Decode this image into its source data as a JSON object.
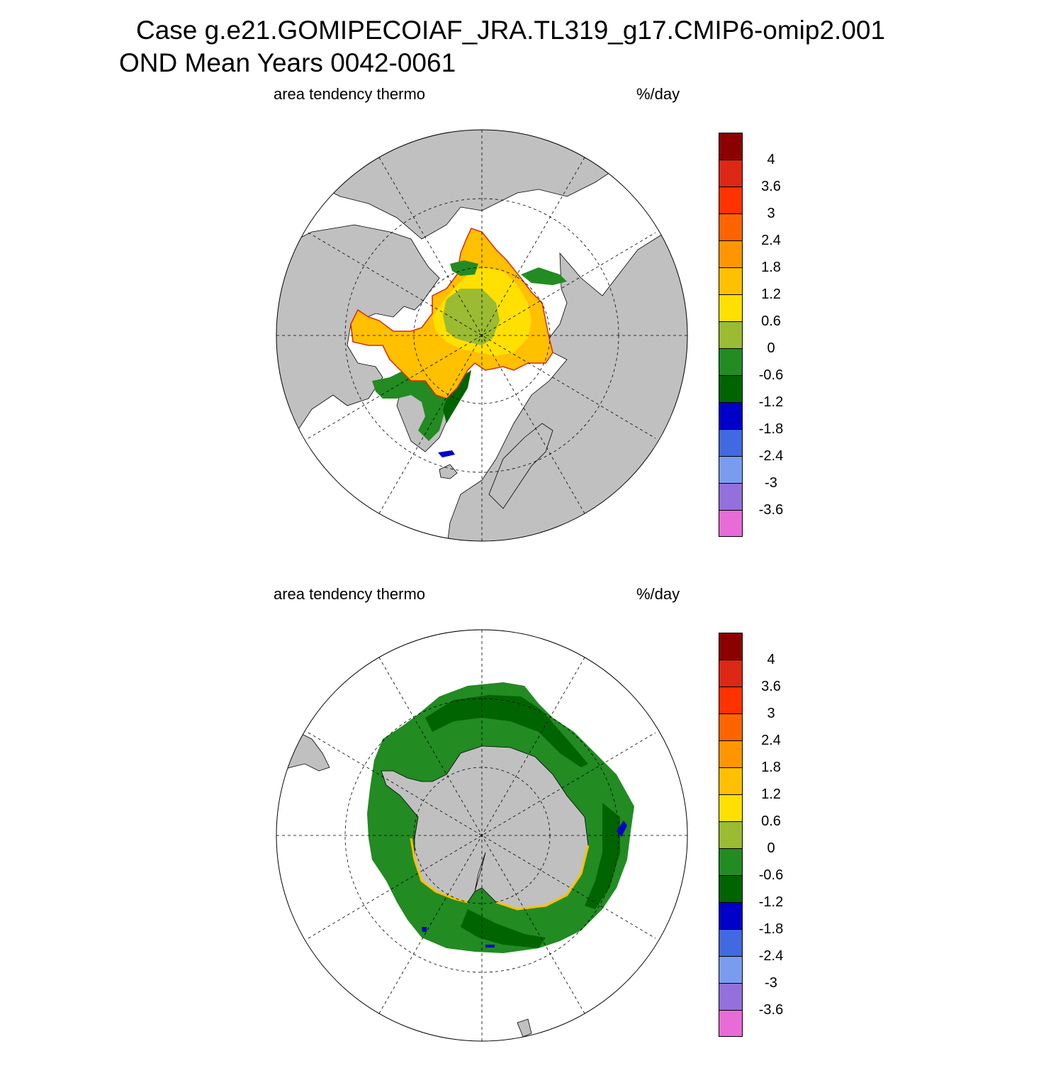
{
  "title": {
    "line1": "Case g.e21.GOMIPECOIAF_JRA.TL319_g17.CMIP6-omip2.001",
    "line2": "OND Mean   Years 0042-0061"
  },
  "colorbar": {
    "colors": [
      "#e86bd8",
      "#9370db",
      "#7a9cf0",
      "#4169e1",
      "#0000c8",
      "#006400",
      "#228b22",
      "#9abb32",
      "#ffe000",
      "#ffc000",
      "#ff9600",
      "#ff6400",
      "#ff3200",
      "#dc2814",
      "#8b0000"
    ],
    "labels": [
      "-3.6",
      "-3",
      "-2.4",
      "-1.8",
      "-1.2",
      "-0.6",
      "0",
      "0.6",
      "1.2",
      "1.8",
      "2.4",
      "3",
      "3.6",
      "4"
    ]
  },
  "colors": {
    "land": "#c0c0c0",
    "coast": "#000000",
    "ocean": "#ffffff"
  },
  "panels": [
    {
      "id": "north",
      "label_left": "area tendency thermo",
      "label_right": "%/day"
    },
    {
      "id": "south",
      "label_left": "area tendency thermo",
      "label_right": "%/day"
    }
  ]
}
